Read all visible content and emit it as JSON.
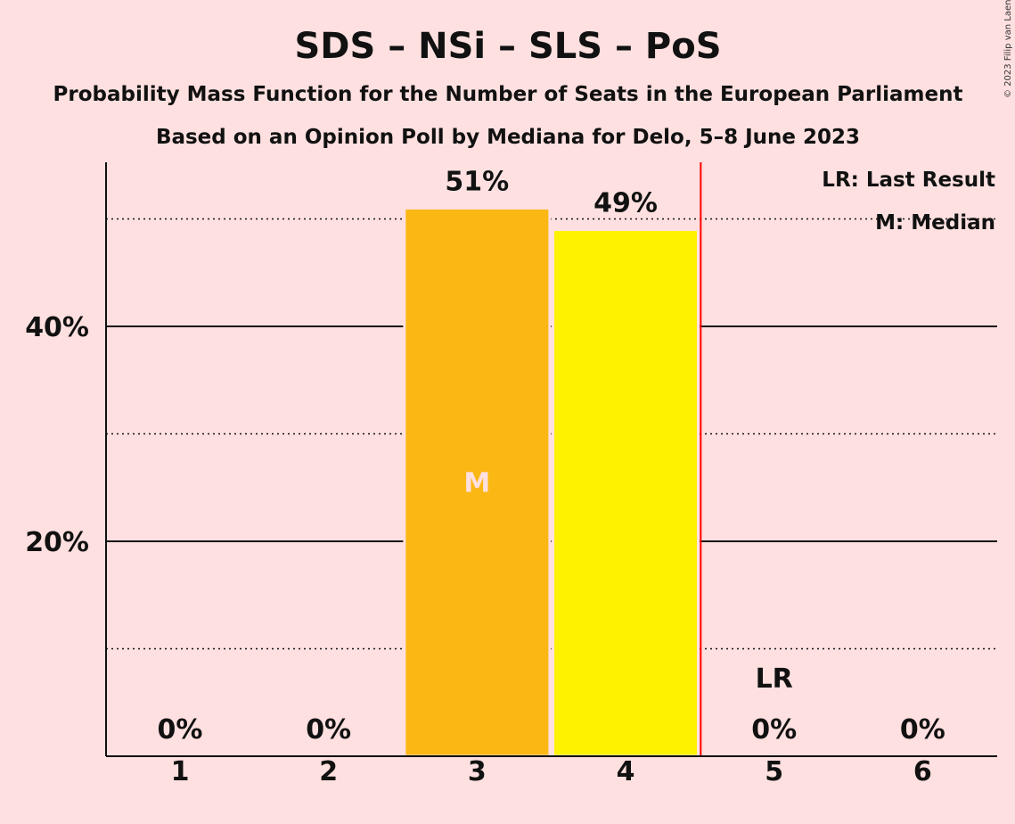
{
  "title": "SDS – NSi – SLS – PoS",
  "subtitle1": "Probability Mass Function for the Number of Seats in the European Parliament",
  "subtitle2": "Based on an Opinion Poll by Mediana for Delo, 5–8 June 2023",
  "copyright": "© 2023 Filip van Laenen",
  "legend": {
    "last_result": "LR: Last Result",
    "median": "M: Median"
  },
  "colors": {
    "background": "#FFE0E0",
    "bar_median": "#FBB714",
    "bar_other": "#FFF200",
    "last_result_line": "#FF0000"
  },
  "chart_data": {
    "type": "bar",
    "categories": [
      "1",
      "2",
      "3",
      "4",
      "5",
      "6"
    ],
    "values": [
      0,
      0,
      51,
      49,
      0,
      0
    ],
    "value_labels": [
      "0%",
      "0%",
      "51%",
      "49%",
      "0%",
      "0%"
    ],
    "ytick_values": [
      20,
      40
    ],
    "ytick_labels": [
      "20%",
      "40%"
    ],
    "minor_grid_values": [
      10,
      30,
      50
    ],
    "ylim": [
      0,
      55
    ],
    "median_category": "3",
    "median_label": "M",
    "last_result_category": "5",
    "last_result_label": "LR"
  }
}
